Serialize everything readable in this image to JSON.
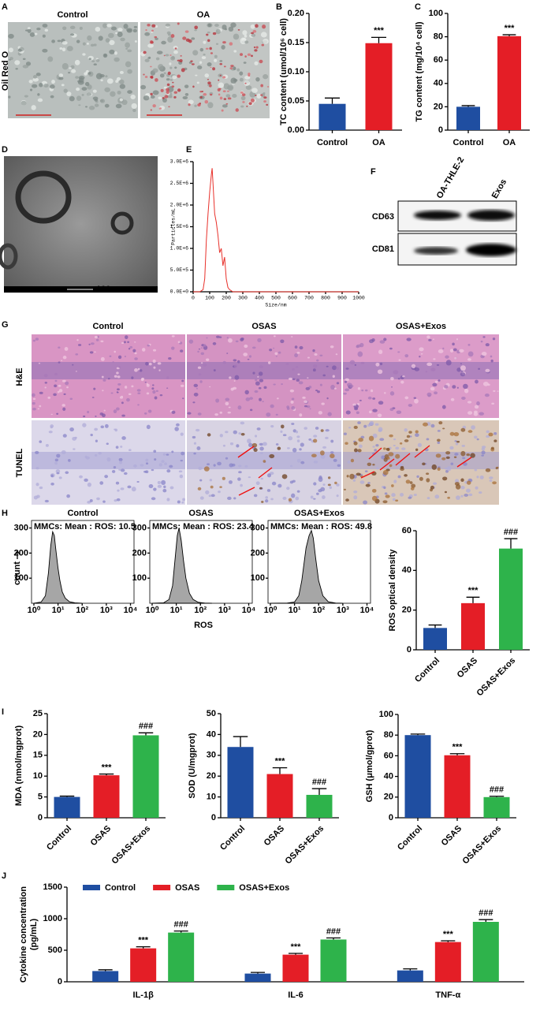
{
  "panels": {
    "A": {
      "letter": "A",
      "columns": [
        "Control",
        "OA"
      ],
      "row_label": "Oil Red O"
    },
    "D": {
      "letter": "D",
      "scale_bar": "100 nm"
    },
    "F": {
      "letter": "F",
      "lanes": [
        "OA-THLE-2",
        "Exos"
      ],
      "bands": [
        "CD63",
        "CD81"
      ]
    },
    "G": {
      "letter": "G",
      "columns": [
        "Control",
        "OSAS",
        "OSAS+Exos"
      ],
      "rows": [
        "H&E",
        "TUNEL"
      ]
    },
    "H": {
      "letter": "H",
      "y_label": "count",
      "x_label": "ROS"
    },
    "I": {
      "letter": "I"
    },
    "J": {
      "letter": "J"
    }
  },
  "chart_data": [
    {
      "type": "bar",
      "panel": "B",
      "y_label": "TC content (umol/10⁶ cell)",
      "categories": [
        "Control",
        "OA"
      ],
      "values": [
        0.045,
        0.149
      ],
      "errors": [
        0.01,
        0.01
      ],
      "significance": [
        null,
        "***"
      ],
      "colors": [
        "#1f4ea1",
        "#e41e26"
      ],
      "ylim": [
        0,
        0.2
      ],
      "yticks": [
        {
          "value": 0,
          "label": "0.00"
        },
        {
          "value": 0.05,
          "label": "0.05"
        },
        {
          "value": 0.1,
          "label": "0.10"
        },
        {
          "value": 0.15,
          "label": "0.15"
        },
        {
          "value": 0.2,
          "label": "0.20"
        }
      ]
    },
    {
      "type": "bar",
      "panel": "C",
      "y_label": "TG content (mg/10⁴ cell)",
      "categories": [
        "Control",
        "OA"
      ],
      "values": [
        20,
        80.5
      ],
      "errors": [
        1,
        1.2
      ],
      "significance": [
        null,
        "***"
      ],
      "colors": [
        "#1f4ea1",
        "#e41e26"
      ],
      "ylim": [
        0,
        100
      ],
      "yticks": [
        0,
        20,
        40,
        60,
        80,
        100
      ]
    },
    {
      "type": "line",
      "panel": "E",
      "y_label": "Particles/mL",
      "x_label": "Size/nm",
      "x": [
        0,
        40,
        60,
        70,
        80,
        90,
        100,
        110,
        115,
        120,
        130,
        140,
        150,
        160,
        170,
        180,
        190,
        200,
        210,
        220,
        240,
        300,
        1000
      ],
      "values": [
        0,
        0,
        50000,
        300000,
        1200000,
        1800000,
        2300000,
        2700000,
        2850000,
        2500000,
        1800000,
        1600000,
        1300000,
        900000,
        1000000,
        600000,
        800000,
        300000,
        100000,
        50000,
        0,
        0,
        0
      ],
      "color": "#e8302a",
      "xlim": [
        0,
        1000
      ],
      "xticks": [
        0,
        100,
        200,
        300,
        400,
        500,
        600,
        700,
        800,
        900,
        1000
      ],
      "ylim": [
        0,
        3000000
      ],
      "yticks": [
        {
          "value": 0,
          "label": "0.0E+0"
        },
        {
          "value": 500000,
          "label": "5.0E+5"
        },
        {
          "value": 1000000,
          "label": "1.0E+6"
        },
        {
          "value": 1500000,
          "label": "1.5E+6"
        },
        {
          "value": 2000000,
          "label": "2.0E+6"
        },
        {
          "value": 2500000,
          "label": "2.5E+6"
        },
        {
          "value": 3000000,
          "label": "3.0E+6"
        }
      ]
    },
    {
      "type": "area",
      "title": "Control",
      "annotation": "MMCs: Mean : ROS: 10.5",
      "x": [
        1,
        2,
        3,
        4,
        5,
        6,
        7,
        8,
        10,
        12,
        15,
        20,
        30,
        50,
        100
      ],
      "values": [
        0,
        5,
        30,
        120,
        230,
        285,
        270,
        220,
        140,
        90,
        45,
        20,
        6,
        2,
        0
      ],
      "color": "#a6a6a6",
      "log_x": true,
      "xlim": [
        0.8,
        14000
      ],
      "xticks": [
        {
          "value": 1,
          "label": "10⁰"
        },
        {
          "value": 10,
          "label": "10¹"
        },
        {
          "value": 100,
          "label": "10²"
        },
        {
          "value": 1000,
          "label": "10³"
        },
        {
          "value": 10000,
          "label": "10⁴"
        }
      ],
      "ylim": [
        0,
        330
      ],
      "yticks": [
        100,
        200,
        300
      ]
    },
    {
      "type": "area",
      "title": "OSAS",
      "annotation": "MMCs: Mean : ROS: 23.4",
      "x": [
        1,
        3,
        5,
        7,
        9,
        11,
        13,
        16,
        20,
        25,
        35,
        50,
        80,
        150,
        300
      ],
      "values": [
        0,
        2,
        15,
        70,
        180,
        270,
        300,
        250,
        170,
        100,
        40,
        15,
        4,
        1,
        0
      ],
      "color": "#a6a6a6",
      "log_x": true,
      "xlim": [
        0.8,
        14000
      ],
      "xticks": [
        {
          "value": 1,
          "label": "10⁰"
        },
        {
          "value": 10,
          "label": "10¹"
        },
        {
          "value": 100,
          "label": "10²"
        },
        {
          "value": 1000,
          "label": "10³"
        },
        {
          "value": 10000,
          "label": "10⁴"
        }
      ],
      "ylim": [
        0,
        330
      ],
      "yticks": [
        100,
        200,
        300
      ]
    },
    {
      "type": "area",
      "title": "OSAS+Exos",
      "annotation": "MMCs: Mean : ROS: 49.8",
      "x": [
        1,
        5,
        10,
        15,
        20,
        30,
        40,
        50,
        60,
        75,
        100,
        150,
        250,
        500,
        1000
      ],
      "values": [
        0,
        1,
        5,
        30,
        90,
        220,
        270,
        290,
        260,
        180,
        90,
        30,
        6,
        1,
        0
      ],
      "color": "#a6a6a6",
      "log_x": true,
      "xlim": [
        0.8,
        14000
      ],
      "xticks": [
        {
          "value": 1,
          "label": "10⁰"
        },
        {
          "value": 10,
          "label": "10¹"
        },
        {
          "value": 100,
          "label": "10²"
        },
        {
          "value": 1000,
          "label": "10³"
        },
        {
          "value": 10000,
          "label": "10⁴"
        }
      ],
      "ylim": [
        0,
        330
      ],
      "yticks": [
        100,
        200,
        300
      ]
    },
    {
      "type": "bar",
      "y_label": "ROS optical density",
      "categories": [
        "Control",
        "OSAS",
        "OSAS+Exos"
      ],
      "values": [
        11,
        23.5,
        51
      ],
      "errors": [
        1.5,
        3,
        5
      ],
      "significance": [
        null,
        "***",
        "###"
      ],
      "colors": [
        "#1f4ea1",
        "#e41e26",
        "#2eb34b"
      ],
      "ylim": [
        0,
        60
      ],
      "yticks": [
        0,
        20,
        40,
        60
      ],
      "rotate_labels": true
    },
    {
      "type": "bar",
      "y_label": "MDA (nmol/mgprot)",
      "categories": [
        "Control",
        "OSAS",
        "OSAS+Exos"
      ],
      "values": [
        5,
        10.2,
        19.8
      ],
      "errors": [
        0.2,
        0.3,
        0.6
      ],
      "significance": [
        null,
        "***",
        "###"
      ],
      "colors": [
        "#1f4ea1",
        "#e41e26",
        "#2eb34b"
      ],
      "ylim": [
        0,
        25
      ],
      "yticks": [
        0,
        5,
        10,
        15,
        20,
        25
      ],
      "rotate_labels": true
    },
    {
      "type": "bar",
      "y_label": "SOD (U/mgprot)",
      "categories": [
        "Control",
        "OSAS",
        "OSAS+Exos"
      ],
      "values": [
        34,
        21,
        11
      ],
      "errors": [
        5,
        3,
        3
      ],
      "significance": [
        null,
        "***",
        "###"
      ],
      "colors": [
        "#1f4ea1",
        "#e41e26",
        "#2eb34b"
      ],
      "ylim": [
        0,
        50
      ],
      "yticks": [
        0,
        10,
        20,
        30,
        40,
        50
      ],
      "rotate_labels": true
    },
    {
      "type": "bar",
      "y_label": "GSH (μmol/gprot)",
      "categories": [
        "Control",
        "OSAS",
        "OSAS+Exos"
      ],
      "values": [
        80,
        60.5,
        20
      ],
      "errors": [
        1,
        1.5,
        0.8
      ],
      "significance": [
        null,
        "***",
        "###"
      ],
      "colors": [
        "#1f4ea1",
        "#e41e26",
        "#2eb34b"
      ],
      "ylim": [
        0,
        100
      ],
      "yticks": [
        0,
        20,
        40,
        60,
        80,
        100
      ],
      "rotate_labels": true
    },
    {
      "type": "grouped_bar",
      "y_label": [
        "Cytokine concentration",
        "(pg/mL)"
      ],
      "categories": [
        "IL-1β",
        "IL-6",
        "TNF-α"
      ],
      "series": [
        {
          "name": "Control",
          "color": "#1f4ea1",
          "values": [
            170,
            130,
            180
          ],
          "errors": [
            20,
            18,
            25
          ],
          "significance": [
            null,
            null,
            null
          ]
        },
        {
          "name": "OSAS",
          "color": "#e41e26",
          "values": [
            530,
            430,
            630
          ],
          "errors": [
            25,
            20,
            20
          ],
          "significance": [
            "***",
            "***",
            "***"
          ]
        },
        {
          "name": "OSAS+Exos",
          "color": "#2eb34b",
          "values": [
            780,
            670,
            950
          ],
          "errors": [
            25,
            25,
            35
          ],
          "significance": [
            "###",
            "###",
            "###"
          ]
        }
      ],
      "ylim": [
        0,
        1500
      ],
      "yticks": [
        0,
        500,
        1000,
        1500
      ],
      "legend": "top-left"
    }
  ]
}
